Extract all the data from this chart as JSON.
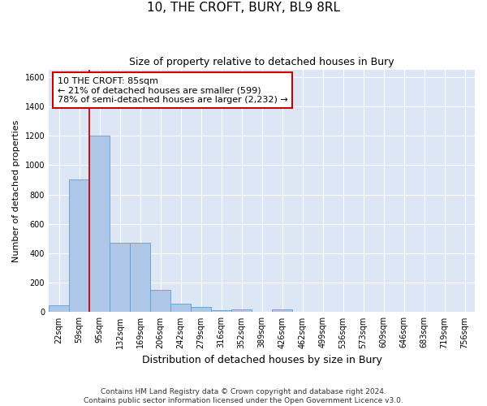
{
  "title": "10, THE CROFT, BURY, BL9 8RL",
  "subtitle": "Size of property relative to detached houses in Bury",
  "xlabel": "Distribution of detached houses by size in Bury",
  "ylabel": "Number of detached properties",
  "categories": [
    "22sqm",
    "59sqm",
    "95sqm",
    "132sqm",
    "169sqm",
    "206sqm",
    "242sqm",
    "279sqm",
    "316sqm",
    "352sqm",
    "389sqm",
    "426sqm",
    "462sqm",
    "499sqm",
    "536sqm",
    "573sqm",
    "609sqm",
    "646sqm",
    "683sqm",
    "719sqm",
    "756sqm"
  ],
  "values": [
    45,
    900,
    1200,
    470,
    470,
    150,
    55,
    35,
    15,
    20,
    0,
    20,
    0,
    0,
    0,
    0,
    0,
    0,
    0,
    0,
    0
  ],
  "bar_color": "#aec6e8",
  "bar_edgecolor": "#5a9fd4",
  "vline_color": "#cc0000",
  "vline_pos": 1.5,
  "annotation_text": "10 THE CROFT: 85sqm\n← 21% of detached houses are smaller (599)\n78% of semi-detached houses are larger (2,232) →",
  "annotation_box_color": "#ffffff",
  "annotation_box_edgecolor": "#cc0000",
  "ylim": [
    0,
    1650
  ],
  "yticks": [
    0,
    200,
    400,
    600,
    800,
    1000,
    1200,
    1400,
    1600
  ],
  "bg_color": "#dce6f5",
  "footer_line1": "Contains HM Land Registry data © Crown copyright and database right 2024.",
  "footer_line2": "Contains public sector information licensed under the Open Government Licence v3.0.",
  "title_fontsize": 11,
  "subtitle_fontsize": 9,
  "xlabel_fontsize": 9,
  "ylabel_fontsize": 8,
  "tick_fontsize": 7,
  "footer_fontsize": 6.5,
  "annot_fontsize": 8
}
